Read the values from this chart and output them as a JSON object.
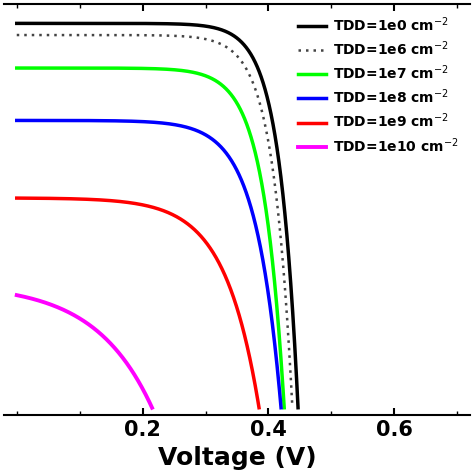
{
  "title": "",
  "xlabel": "Voltage (V)",
  "ylabel": "",
  "xlim": [
    -0.02,
    0.72
  ],
  "ylim": [
    -0.02,
    1.05
  ],
  "xticks": [
    0.2,
    0.4,
    0.6
  ],
  "background_color": "#ffffff",
  "curves": [
    {
      "label": "TDD=1e0 cm$^{-2}$",
      "color": "#000000",
      "linestyle": "solid",
      "linewidth": 2.5,
      "Voc": 0.447,
      "Jsc": 0.99,
      "n": 1.15
    },
    {
      "label": "TDD=1e6 cm$^{-2}$",
      "color": "#444444",
      "linestyle": "densely_dotted",
      "linewidth": 1.8,
      "Voc": 0.438,
      "Jsc": 0.96,
      "n": 1.18
    },
    {
      "label": "TDD=1e7 cm$^{-2}$",
      "color": "#00ff00",
      "linestyle": "solid",
      "linewidth": 2.5,
      "Voc": 0.425,
      "Jsc": 0.875,
      "n": 1.28
    },
    {
      "label": "TDD=1e8 cm$^{-2}$",
      "color": "#0000ff",
      "linestyle": "solid",
      "linewidth": 2.5,
      "Voc": 0.42,
      "Jsc": 0.74,
      "n": 1.55
    },
    {
      "label": "TDD=1e9 cm$^{-2}$",
      "color": "#ff0000",
      "linestyle": "solid",
      "linewidth": 2.5,
      "Voc": 0.385,
      "Jsc": 0.54,
      "n": 2.1
    },
    {
      "label": "TDD=1e10 cm$^{-2}$",
      "color": "#ff00ff",
      "linestyle": "solid",
      "linewidth": 2.8,
      "Voc": 0.215,
      "Jsc": 0.29,
      "n": 3.5
    }
  ],
  "legend_loc": "upper right",
  "legend_fontsize": 10,
  "tick_fontsize": 15,
  "label_fontsize": 18
}
